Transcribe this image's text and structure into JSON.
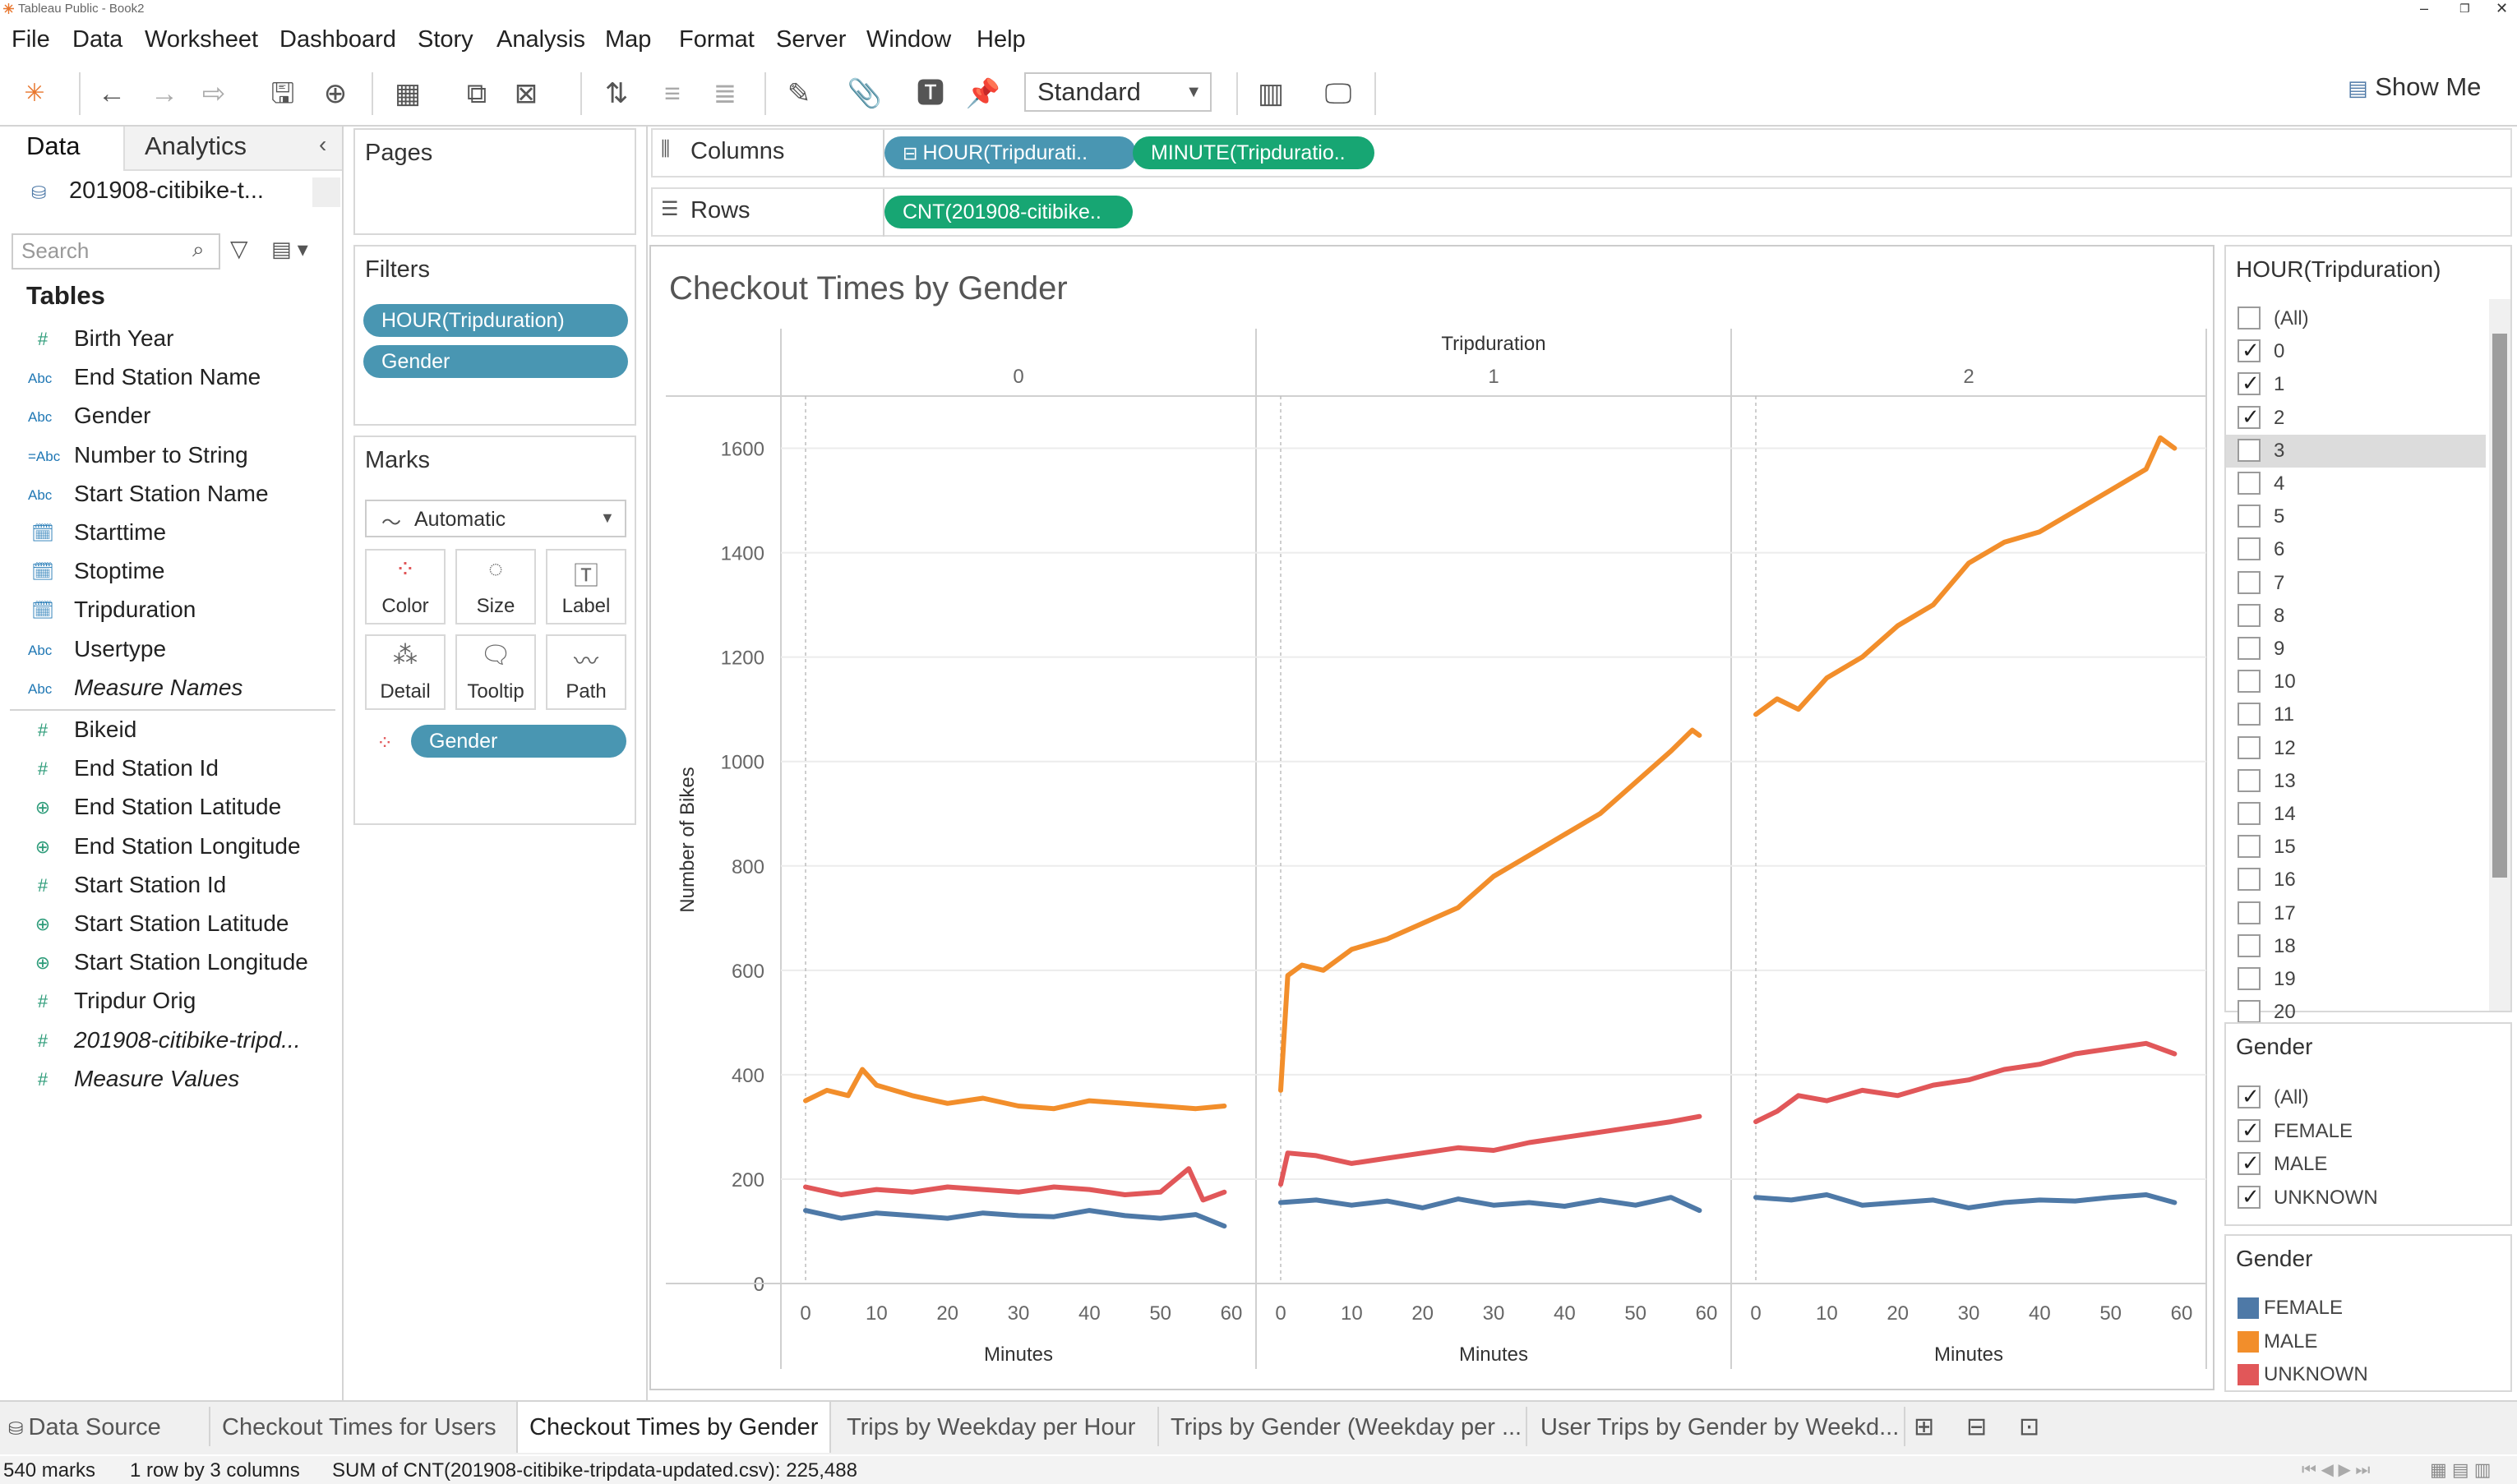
{
  "window": {
    "title": "Tableau Public - Book2"
  },
  "menu": [
    "File",
    "Data",
    "Worksheet",
    "Dashboard",
    "Story",
    "Analysis",
    "Map",
    "Format",
    "Server",
    "Window",
    "Help"
  ],
  "toolbar": {
    "fit_select": "Standard",
    "show_me": "Show Me"
  },
  "data_pane": {
    "tab_data": "Data",
    "tab_analytics": "Analytics",
    "datasource": "201908-citibike-t...",
    "search_placeholder": "Search",
    "tables_heading": "Tables",
    "fields": [
      {
        "name": "Birth Year",
        "type": "number",
        "italic": false
      },
      {
        "name": "End Station Name",
        "type": "string",
        "italic": false
      },
      {
        "name": "Gender",
        "type": "string",
        "italic": false
      },
      {
        "name": "Number to String",
        "type": "string-calc",
        "italic": false
      },
      {
        "name": "Start Station Name",
        "type": "string",
        "italic": false
      },
      {
        "name": "Starttime",
        "type": "datetime",
        "italic": false
      },
      {
        "name": "Stoptime",
        "type": "datetime",
        "italic": false
      },
      {
        "name": "Tripduration",
        "type": "datetime",
        "italic": false
      },
      {
        "name": "Usertype",
        "type": "string",
        "italic": false
      },
      {
        "name": "Measure Names",
        "type": "string",
        "italic": true
      },
      {
        "name": "Bikeid",
        "type": "number",
        "italic": false
      },
      {
        "name": "End Station Id",
        "type": "number",
        "italic": false
      },
      {
        "name": "End Station Latitude",
        "type": "geo",
        "italic": false
      },
      {
        "name": "End Station Longitude",
        "type": "geo",
        "italic": false
      },
      {
        "name": "Start Station Id",
        "type": "number",
        "italic": false
      },
      {
        "name": "Start Station Latitude",
        "type": "geo",
        "italic": false
      },
      {
        "name": "Start Station Longitude",
        "type": "geo",
        "italic": false
      },
      {
        "name": "Tripdur Orig",
        "type": "number",
        "italic": false
      },
      {
        "name": "201908-citibike-tripd...",
        "type": "number",
        "italic": true
      },
      {
        "name": "Measure Values",
        "type": "number",
        "italic": true
      }
    ]
  },
  "pages": {
    "title": "Pages"
  },
  "filters": {
    "title": "Filters",
    "pills": [
      "HOUR(Tripduration)",
      "Gender"
    ]
  },
  "marks": {
    "title": "Marks",
    "type": "Automatic",
    "buttons": [
      "Color",
      "Size",
      "Label",
      "Detail",
      "Tooltip",
      "Path"
    ],
    "color_pill": "Gender"
  },
  "shelves": {
    "columns_label": "Columns",
    "rows_label": "Rows",
    "columns": [
      "HOUR(Tripdurati..",
      "MINUTE(Tripduratio.."
    ],
    "rows": [
      "CNT(201908-citibike.."
    ]
  },
  "hour_filter": {
    "title": "HOUR(Tripduration)",
    "items": [
      {
        "label": "(All)",
        "checked": false
      },
      {
        "label": "0",
        "checked": true
      },
      {
        "label": "1",
        "checked": true
      },
      {
        "label": "2",
        "checked": true
      },
      {
        "label": "3",
        "checked": false,
        "highlight": true
      },
      {
        "label": "4",
        "checked": false
      },
      {
        "label": "5",
        "checked": false
      },
      {
        "label": "6",
        "checked": false
      },
      {
        "label": "7",
        "checked": false
      },
      {
        "label": "8",
        "checked": false
      },
      {
        "label": "9",
        "checked": false
      },
      {
        "label": "10",
        "checked": false
      },
      {
        "label": "11",
        "checked": false
      },
      {
        "label": "12",
        "checked": false
      },
      {
        "label": "13",
        "checked": false
      },
      {
        "label": "14",
        "checked": false
      },
      {
        "label": "15",
        "checked": false
      },
      {
        "label": "16",
        "checked": false
      },
      {
        "label": "17",
        "checked": false
      },
      {
        "label": "18",
        "checked": false
      },
      {
        "label": "19",
        "checked": false
      },
      {
        "label": "20",
        "checked": false
      }
    ]
  },
  "gender_filter": {
    "title": "Gender",
    "items": [
      {
        "label": "(All)",
        "checked": true
      },
      {
        "label": "FEMALE",
        "checked": true
      },
      {
        "label": "MALE",
        "checked": true
      },
      {
        "label": "UNKNOWN",
        "checked": true
      }
    ]
  },
  "gender_legend": {
    "title": "Gender",
    "items": [
      {
        "label": "FEMALE",
        "color": "#4e79a7"
      },
      {
        "label": "MALE",
        "color": "#f28e2b"
      },
      {
        "label": "UNKNOWN",
        "color": "#e15759"
      }
    ]
  },
  "chart_data": {
    "type": "line",
    "title": "Checkout Times by Gender",
    "column_header": "Tripduration",
    "panels": [
      "0",
      "1",
      "2"
    ],
    "xlabel": "Minutes",
    "ylabel": "Number of Bikes",
    "xlim": [
      0,
      60
    ],
    "ylim": [
      0,
      1700
    ],
    "x_ticks": [
      0,
      10,
      20,
      30,
      40,
      50,
      60
    ],
    "y_ticks": [
      0,
      200,
      400,
      600,
      800,
      1000,
      1200,
      1400,
      1600
    ],
    "series": [
      {
        "name": "FEMALE",
        "color": "#4e79a7",
        "panels": [
          {
            "x": [
              0,
              5,
              10,
              15,
              20,
              25,
              30,
              35,
              40,
              45,
              50,
              55,
              59
            ],
            "y": [
              140,
              125,
              135,
              130,
              125,
              135,
              130,
              128,
              140,
              130,
              125,
              132,
              110
            ]
          },
          {
            "x": [
              0,
              5,
              10,
              15,
              20,
              25,
              30,
              35,
              40,
              45,
              50,
              55,
              59
            ],
            "y": [
              155,
              160,
              150,
              158,
              145,
              162,
              150,
              155,
              148,
              160,
              150,
              165,
              140
            ]
          },
          {
            "x": [
              0,
              5,
              10,
              15,
              20,
              25,
              30,
              35,
              40,
              45,
              50,
              55,
              59
            ],
            "y": [
              165,
              160,
              170,
              150,
              155,
              160,
              145,
              155,
              160,
              158,
              165,
              170,
              155
            ]
          }
        ]
      },
      {
        "name": "MALE",
        "color": "#f28e2b",
        "panels": [
          {
            "x": [
              0,
              3,
              6,
              8,
              10,
              15,
              20,
              25,
              30,
              35,
              40,
              45,
              50,
              55,
              59
            ],
            "y": [
              350,
              370,
              360,
              410,
              380,
              360,
              345,
              355,
              340,
              335,
              350,
              345,
              340,
              335,
              340
            ]
          },
          {
            "x": [
              0,
              1,
              3,
              6,
              10,
              15,
              20,
              25,
              30,
              35,
              40,
              45,
              50,
              55,
              58,
              59
            ],
            "y": [
              370,
              590,
              610,
              600,
              640,
              660,
              690,
              720,
              780,
              820,
              860,
              900,
              960,
              1020,
              1060,
              1050
            ]
          },
          {
            "x": [
              0,
              3,
              6,
              10,
              15,
              20,
              25,
              30,
              35,
              40,
              45,
              50,
              55,
              57,
              59
            ],
            "y": [
              1090,
              1120,
              1100,
              1160,
              1200,
              1260,
              1300,
              1380,
              1420,
              1440,
              1480,
              1520,
              1560,
              1620,
              1600
            ]
          }
        ]
      },
      {
        "name": "UNKNOWN",
        "color": "#e15759",
        "panels": [
          {
            "x": [
              0,
              5,
              10,
              15,
              20,
              25,
              30,
              35,
              40,
              45,
              50,
              54,
              56,
              59
            ],
            "y": [
              185,
              170,
              180,
              175,
              185,
              180,
              175,
              185,
              180,
              170,
              175,
              220,
              160,
              175
            ]
          },
          {
            "x": [
              0,
              1,
              5,
              10,
              15,
              20,
              25,
              30,
              35,
              40,
              45,
              50,
              55,
              59
            ],
            "y": [
              190,
              250,
              245,
              230,
              240,
              250,
              260,
              255,
              270,
              280,
              290,
              300,
              310,
              320
            ]
          },
          {
            "x": [
              0,
              3,
              6,
              10,
              15,
              20,
              25,
              30,
              35,
              40,
              45,
              50,
              55,
              59
            ],
            "y": [
              310,
              330,
              360,
              350,
              370,
              360,
              380,
              390,
              410,
              420,
              440,
              450,
              460,
              440
            ]
          }
        ]
      }
    ]
  },
  "bottom_tabs": [
    {
      "label": "Data Source",
      "active": false
    },
    {
      "label": "Checkout Times for Users",
      "active": false
    },
    {
      "label": "Checkout Times by Gender",
      "active": true
    },
    {
      "label": "Trips by Weekday  per Hour",
      "active": false
    },
    {
      "label": "Trips by Gender (Weekday per ...",
      "active": false
    },
    {
      "label": "User Trips by Gender by Weekd...",
      "active": false
    }
  ],
  "status": {
    "marks": "540 marks",
    "dims": "1 row by 3 columns",
    "sum": "SUM of CNT(201908-citibike-tripdata-updated.csv): 225,488"
  }
}
